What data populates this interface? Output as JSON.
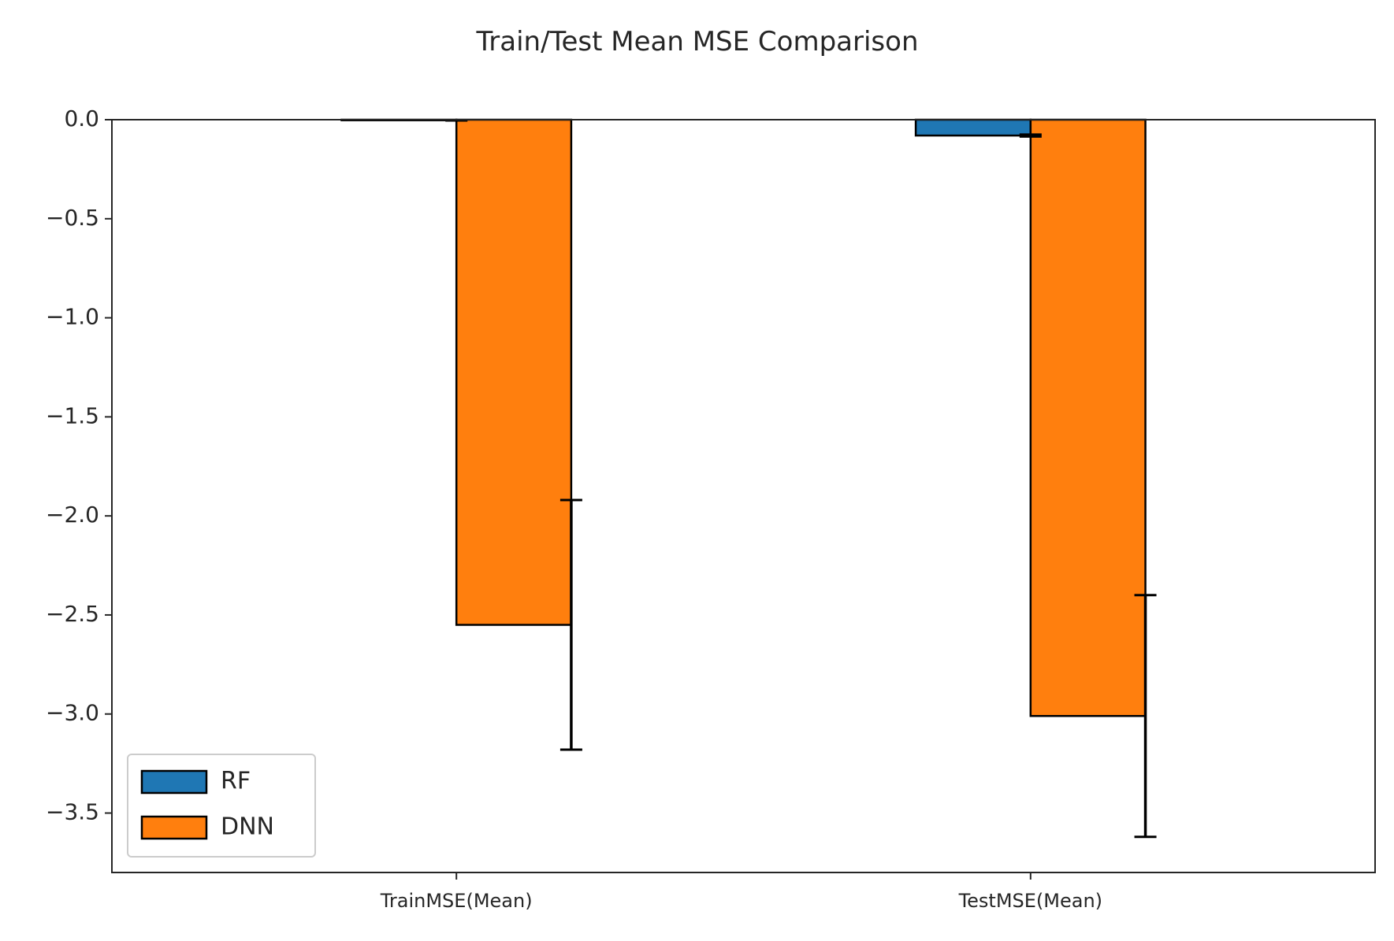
{
  "chart_data": {
    "type": "bar",
    "title": "Train/Test Mean MSE Comparison",
    "xlabel": "",
    "ylabel": "",
    "categories": [
      "TrainMSE(Mean)",
      "TestMSE(Mean)"
    ],
    "series": [
      {
        "name": "RF",
        "color": "#1f77b4",
        "values": [
          -0.003,
          -0.08
        ],
        "errors": [
          0.001,
          0.005
        ]
      },
      {
        "name": "DNN",
        "color": "#ff7f0e",
        "values": [
          -2.55,
          -3.01
        ],
        "errors": [
          0.63,
          0.61
        ]
      }
    ],
    "ylim": [
      -3.8,
      0.0
    ],
    "yticks": [
      0.0,
      -0.5,
      -1.0,
      -1.5,
      -2.0,
      -2.5,
      -3.0,
      -3.5
    ],
    "ytick_labels": [
      "0.0",
      "−0.5",
      "−1.0",
      "−1.5",
      "−2.0",
      "−2.5",
      "−3.0",
      "−3.5"
    ],
    "grid": false,
    "legend_position": "lower-left"
  }
}
